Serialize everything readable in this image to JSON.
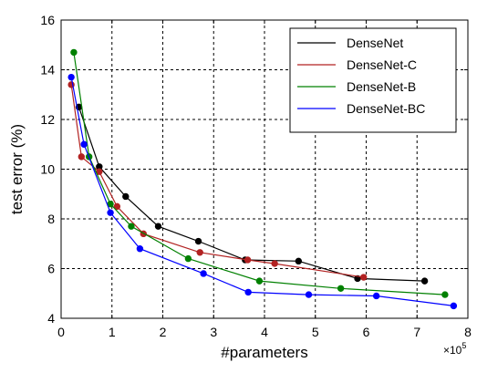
{
  "chart_data": {
    "type": "line",
    "xlabel": "#parameters",
    "ylabel": "test error (%)",
    "x_multiplier_label": "×10",
    "x_multiplier_exp": "5",
    "xlim": [
      0,
      8
    ],
    "ylim": [
      4,
      16
    ],
    "xticks": [
      "0",
      "1",
      "2",
      "3",
      "4",
      "5",
      "6",
      "7",
      "8"
    ],
    "yticks": [
      "4",
      "6",
      "8",
      "10",
      "12",
      "14",
      "16"
    ],
    "grid": true,
    "legend_position": "top-right",
    "series": [
      {
        "name": "DenseNet",
        "color": "#000000",
        "x": [
          0.35,
          0.75,
          1.27,
          1.91,
          2.7,
          3.62,
          4.67,
          5.83,
          7.15
        ],
        "y": [
          12.5,
          10.1,
          8.9,
          7.7,
          7.1,
          6.35,
          6.3,
          5.6,
          5.5
        ]
      },
      {
        "name": "DenseNet-C",
        "color": "#b22222",
        "x": [
          0.2,
          0.4,
          0.75,
          1.1,
          1.62,
          2.73,
          3.67,
          4.2,
          5.95
        ],
        "y": [
          13.4,
          10.5,
          9.9,
          8.5,
          7.4,
          6.65,
          6.35,
          6.2,
          5.65
        ]
      },
      {
        "name": "DenseNet-B",
        "color": "#008000",
        "x": [
          0.25,
          0.55,
          0.97,
          1.38,
          2.5,
          3.9,
          5.5,
          7.55
        ],
        "y": [
          14.7,
          10.5,
          8.6,
          7.7,
          6.4,
          5.5,
          5.2,
          4.95
        ]
      },
      {
        "name": "DenseNet-BC",
        "color": "#0000ff",
        "x": [
          0.2,
          0.45,
          0.97,
          1.55,
          2.8,
          3.68,
          4.87,
          6.2,
          7.72
        ],
        "y": [
          13.7,
          11.0,
          8.25,
          6.8,
          5.8,
          5.05,
          4.95,
          4.9,
          4.5
        ]
      }
    ]
  }
}
